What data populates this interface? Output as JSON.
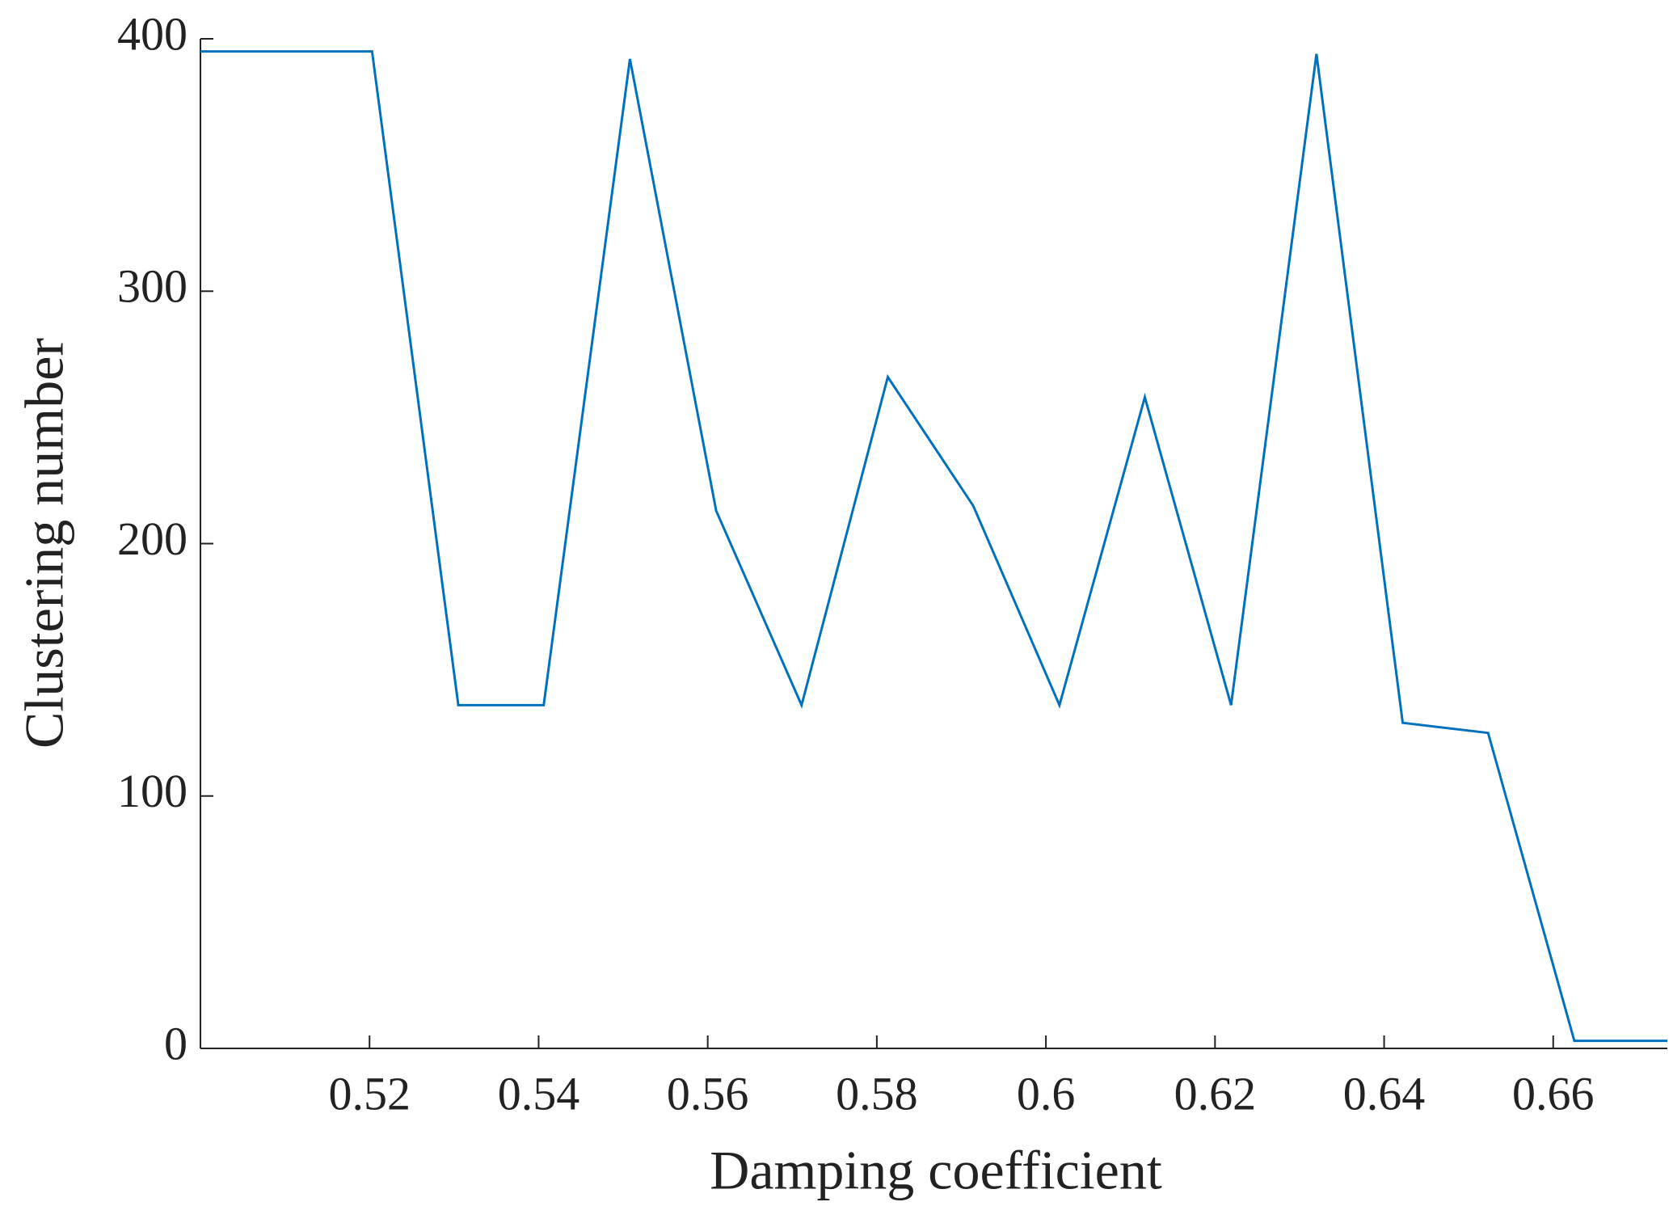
{
  "chart_data": {
    "type": "line",
    "x_label": "Damping coefficient",
    "y_label": "Clustering number",
    "x": [
      0.5,
      0.5203,
      0.5305,
      0.5406,
      0.5508,
      0.561,
      0.5711,
      0.5813,
      0.5914,
      0.6016,
      0.6117,
      0.6219,
      0.632,
      0.6422,
      0.6523,
      0.6625,
      0.6735
    ],
    "series": [
      {
        "color": "#0072bd",
        "values": [
          395,
          395,
          136,
          136,
          392,
          213,
          136,
          266,
          215,
          136,
          258,
          136,
          394,
          129,
          125,
          3,
          3
        ]
      }
    ],
    "xlim": [
      0.5,
      0.6735
    ],
    "ylim": [
      0,
      400
    ],
    "xticks": [
      0.52,
      0.54,
      0.56,
      0.58,
      0.6,
      0.62,
      0.64,
      0.66
    ],
    "yticks": [
      0,
      100,
      200,
      300,
      400
    ],
    "grid": false
  }
}
